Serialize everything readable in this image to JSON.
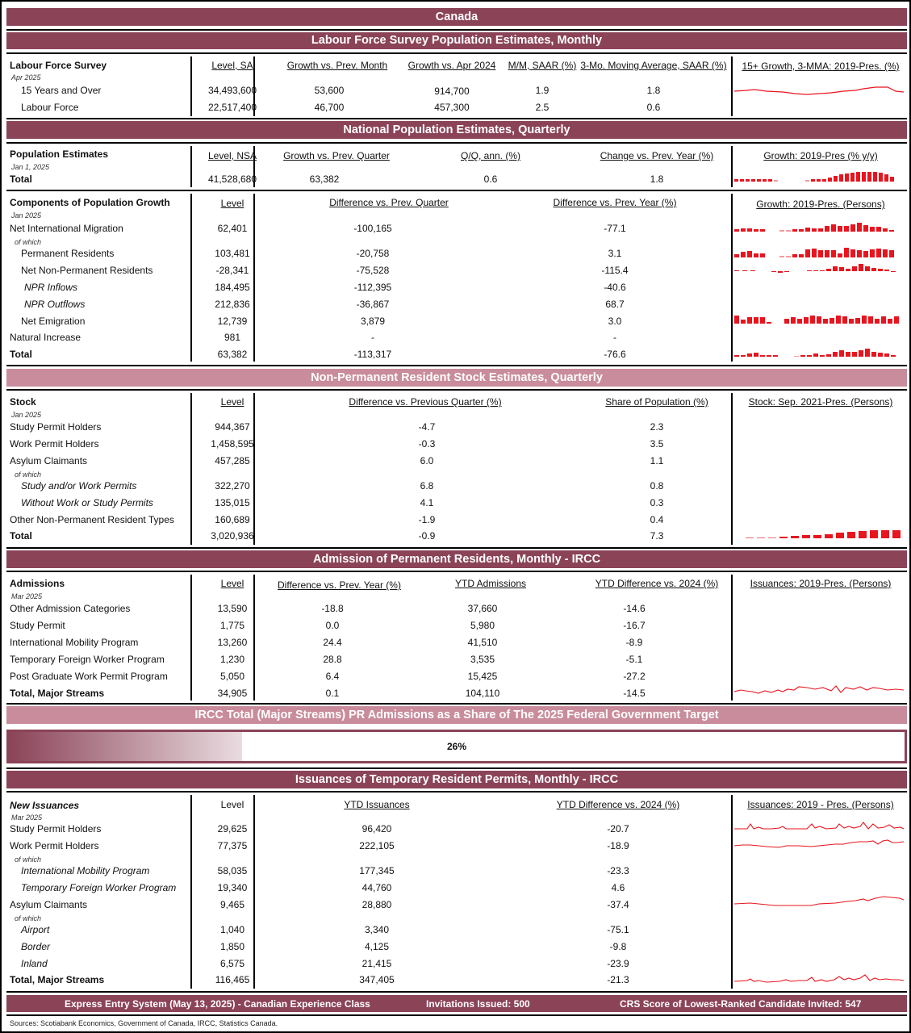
{
  "title": "Canada",
  "lfs": {
    "band": "Labour Force Survey Population Estimates, Monthly",
    "section_label": "Labour Force Survey",
    "date": "Apr 2025",
    "headers": [
      "Level, SA",
      "Growth vs. Prev. Month",
      "Growth vs. Apr 2024",
      "M/M, SAAR (%)",
      "3-Mo. Moving Average, SAAR (%)"
    ],
    "chart_title": "15+ Growth, 3-MMA: 2019-Pres. (%)",
    "rows": [
      {
        "label": "15 Years and Over",
        "values": [
          "34,493,600",
          "53,600",
          "914,700",
          "1.9",
          "1.8"
        ]
      },
      {
        "label": "Labour Force",
        "values": [
          "22,517,400",
          "46,700",
          "457,300",
          "2.5",
          "0.6"
        ]
      }
    ]
  },
  "npe": {
    "band": "National Population Estimates, Quarterly",
    "section_label": "Population Estimates",
    "date": "Jan 1, 2025",
    "headers": [
      "Level, NSA",
      "Growth vs. Prev. Quarter",
      "Q/Q, ann. (%)",
      "Change vs. Prev. Year (%)"
    ],
    "chart_title": "Growth: 2019-Pres (% y/y)",
    "total": {
      "label": "Total",
      "values": [
        "41,528,680",
        "63,382",
        "0.6",
        "1.8"
      ]
    }
  },
  "components": {
    "section_label": "Components of Population Growth",
    "date": "Jan 2025",
    "headers": [
      "Level",
      "Difference vs. Prev. Quarter",
      "Difference vs. Prev. Year (%)"
    ],
    "chart_title": "Growth: 2019-Pres. (Persons)",
    "of_which": "of which",
    "rows": [
      {
        "label": "Net International Migration",
        "values": [
          "62,401",
          "-100,165",
          "-77.1"
        ]
      },
      {
        "label": "Permanent Residents",
        "values": [
          "103,481",
          "-20,758",
          "3.1"
        ]
      },
      {
        "label": "Net Non-Permanent Residents",
        "values": [
          "-28,341",
          "-75,528",
          "-115.4"
        ]
      },
      {
        "label": "NPR Inflows",
        "values": [
          "184,495",
          "-112,395",
          "-40.6"
        ]
      },
      {
        "label": "NPR Outflows",
        "values": [
          "212,836",
          "-36,867",
          "68.7"
        ]
      },
      {
        "label": "Net Emigration",
        "values": [
          "12,739",
          "3,879",
          "3.0"
        ]
      },
      {
        "label": "Natural Increase",
        "values": [
          "981",
          "-",
          "-"
        ]
      },
      {
        "label": "Total",
        "values": [
          "63,382",
          "-113,317",
          "-76.6"
        ]
      }
    ]
  },
  "npr": {
    "band": "Non-Permanent Resident Stock Estimates, Quarterly",
    "section_label": "Stock",
    "date": "Jan 2025",
    "headers": [
      "Level",
      "Difference vs. Previous Quarter (%)",
      "Share of Population (%)"
    ],
    "chart_title": "Stock: Sep. 2021-Pres. (Persons)",
    "of_which": "of which",
    "rows": [
      {
        "label": "Study Permit Holders",
        "values": [
          "944,367",
          "-4.7",
          "2.3"
        ]
      },
      {
        "label": "Work Permit Holders",
        "values": [
          "1,458,595",
          "-0.3",
          "3.5"
        ]
      },
      {
        "label": "Asylum Claimants",
        "values": [
          "457,285",
          "6.0",
          "1.1"
        ]
      },
      {
        "label": "Study and/or Work Permits",
        "values": [
          "322,270",
          "6.8",
          "0.8"
        ]
      },
      {
        "label": "Without Work or Study Permits",
        "values": [
          "135,015",
          "4.1",
          "0.3"
        ]
      },
      {
        "label": "Other Non-Permanent Resident Types",
        "values": [
          "160,689",
          "-1.9",
          "0.4"
        ]
      },
      {
        "label": "Total",
        "values": [
          "3,020,936",
          "-0.9",
          "7.3"
        ]
      }
    ]
  },
  "pr": {
    "band": "Admission of Permanent Residents, Monthly - IRCC",
    "section_label": "Admissions",
    "date": "Mar 2025",
    "headers": [
      "Level",
      "Difference vs. Prev. Year (%)",
      "YTD Admissions",
      "YTD Difference vs. 2024 (%)"
    ],
    "chart_title": "Issuances: 2019-Pres. (Persons)",
    "rows": [
      {
        "label": "Other Admission Categories",
        "values": [
          "13,590",
          "-18.8",
          "37,660",
          "-14.6"
        ]
      },
      {
        "label": "Study Permit",
        "values": [
          "1,775",
          "0.0",
          "5,980",
          "-16.7"
        ]
      },
      {
        "label": "International Mobility Program",
        "values": [
          "13,260",
          "24.4",
          "41,510",
          "-8.9"
        ]
      },
      {
        "label": "Temporary Foreign Worker Program",
        "values": [
          "1,230",
          "28.8",
          "3,535",
          "-5.1"
        ]
      },
      {
        "label": "Post Graduate Work Permit Program",
        "values": [
          "5,050",
          "6.4",
          "15,425",
          "-27.2"
        ]
      },
      {
        "label": "Total, Major Streams",
        "values": [
          "34,905",
          "0.1",
          "104,110",
          "-14.5"
        ]
      }
    ]
  },
  "target": {
    "band": "IRCC Total (Major Streams) PR Admissions as a Share of The 2025 Federal Government Target",
    "percent_label": "26%",
    "percent": 26
  },
  "trp": {
    "band": "Issuances of Temporary Resident Permits, Monthly - IRCC",
    "section_label": "New Issuances",
    "date": "Mar 2025",
    "headers": [
      "Level",
      "YTD Issuances",
      "YTD Difference vs. 2024 (%)"
    ],
    "chart_title": "Issuances: 2019 - Pres. (Persons)",
    "of_which": "of which",
    "rows": [
      {
        "label": "Study Permit Holders",
        "values": [
          "29,625",
          "96,420",
          "-20.7"
        ]
      },
      {
        "label": "Work Permit Holders",
        "values": [
          "77,375",
          "222,105",
          "-18.9"
        ]
      },
      {
        "label": "International Mobility Program",
        "values": [
          "58,035",
          "177,345",
          "-23.3"
        ]
      },
      {
        "label": "Temporary Foreign Worker Program",
        "values": [
          "19,340",
          "44,760",
          "4.6"
        ]
      },
      {
        "label": "Asylum Claimants",
        "values": [
          "9,465",
          "28,880",
          "-37.4"
        ]
      },
      {
        "label": "Airport",
        "values": [
          "1,040",
          "3,340",
          "-75.1"
        ]
      },
      {
        "label": "Border",
        "values": [
          "1,850",
          "4,125",
          "-9.8"
        ]
      },
      {
        "label": "Inland",
        "values": [
          "6,575",
          "21,415",
          "-23.9"
        ]
      },
      {
        "label": "Total, Major Streams",
        "values": [
          "116,465",
          "347,405",
          "-21.3"
        ]
      }
    ]
  },
  "express_entry": {
    "label": "Express Entry System (May 13, 2025) - Canadian Experience Class",
    "invitations": "Invitations Issued: 500",
    "crs": "CRS Score of Lowest-Ranked Candidate Invited: 547"
  },
  "sources": "Sources: Scotiabank Economics, Government of Canada, IRCC, Statistics Canada.",
  "colors": {
    "band_dark": "#8b4358",
    "band_light": "#c98c9c",
    "spark_red": "#e8141e"
  }
}
